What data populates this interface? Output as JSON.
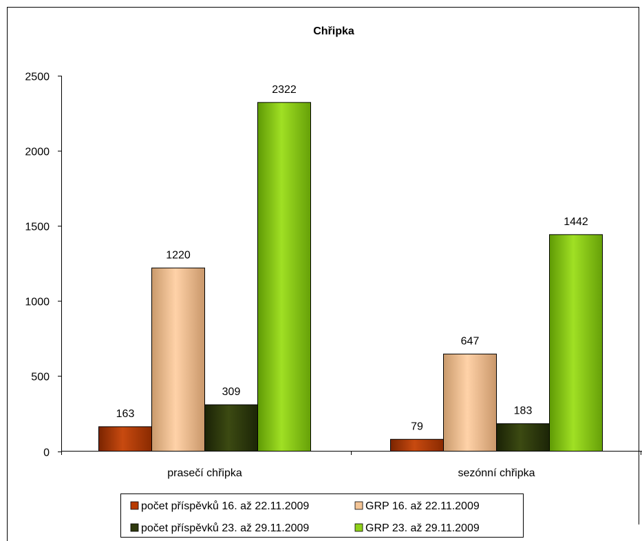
{
  "chart_data": {
    "type": "bar",
    "title": "Chřipka",
    "xlabel": "",
    "ylabel": "",
    "ylim": [
      0,
      2500
    ],
    "yticks": [
      0,
      500,
      1000,
      1500,
      2000,
      2500
    ],
    "grid": false,
    "legend_position": "bottom",
    "categories": [
      "prasečí chřipka",
      "sezónní chřipka"
    ],
    "series": [
      {
        "name": "počet příspěvků 16. až 22.11.2009",
        "values": [
          163,
          79
        ],
        "color": "#b83a00"
      },
      {
        "name": "GRP 16. až 22.11.2009",
        "values": [
          1220,
          647
        ],
        "color": "#f4c596"
      },
      {
        "name": "počet příspěvků 23. až 29.11.2009",
        "values": [
          309,
          183
        ],
        "color": "#2f3a0e"
      },
      {
        "name": "GRP 23. až 29.11.2009",
        "values": [
          2322,
          1442
        ],
        "color": "#8fd11a"
      }
    ]
  }
}
